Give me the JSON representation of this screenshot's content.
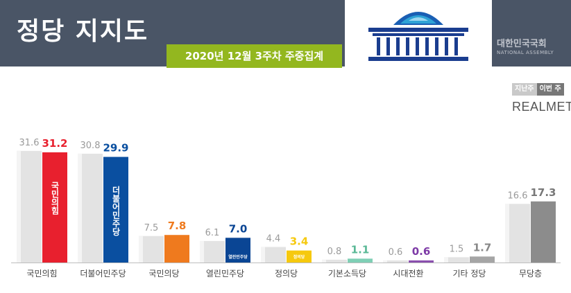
{
  "header": {
    "title": "정당 지지도",
    "subtitle": "2020년 12월 3주차 주중집계",
    "assembly_name": "대한민국국회",
    "assembly_name_en": "NATIONAL ASSEMBLY"
  },
  "legend": {
    "prev": "지난주",
    "curr": "이번 주"
  },
  "source": "REALMETER",
  "chart_data": {
    "type": "bar",
    "categories": [
      "국민의힘",
      "더불어민주당",
      "국민의당",
      "열린민주당",
      "정의당",
      "기본소득당",
      "시대전환",
      "기타 정당",
      "무당층"
    ],
    "series": [
      {
        "name": "지난주",
        "values": [
          31.6,
          30.8,
          7.5,
          6.1,
          4.4,
          0.8,
          0.6,
          1.5,
          16.6
        ]
      },
      {
        "name": "이번 주",
        "values": [
          31.2,
          29.9,
          7.8,
          7.0,
          3.4,
          1.1,
          0.6,
          1.7,
          17.3
        ]
      }
    ],
    "bar_labels": [
      "국민의힘",
      "더불어민주당",
      "",
      "열린민주당",
      "정의당",
      "",
      "",
      "",
      ""
    ],
    "colors": {
      "prev": "#e3e3e3",
      "curr": [
        "#e8202e",
        "#0a4fa0",
        "#ef7a1e",
        "#0a4594",
        "#f6c90e",
        "#7fcfb5",
        "#8a4fae",
        "#a5a5a5",
        "#8c8c8c"
      ],
      "curr_label": [
        "#e8202e",
        "#0a4fa0",
        "#ef7a1e",
        "#0a4594",
        "#f6c90e",
        "#5ab896",
        "#7d3aa6",
        "#888888",
        "#777777"
      ]
    },
    "ylim": [
      0,
      35
    ]
  }
}
